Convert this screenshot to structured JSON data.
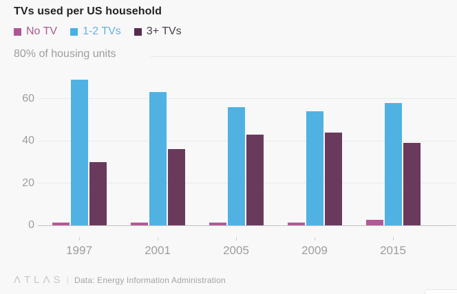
{
  "header": {
    "title": "TVs used per US household"
  },
  "legend": [
    {
      "label": "No TV",
      "swatch_color": "#b0549a",
      "text_color": "#a85a90"
    },
    {
      "label": "1-2 TVs",
      "swatch_color": "#45b1e6",
      "text_color": "#62b2de"
    },
    {
      "label": "3+ TVs",
      "swatch_color": "#572c52",
      "text_color": "#4c3a4e"
    }
  ],
  "axis_note": "80% of housing units",
  "chart_data": {
    "type": "bar",
    "title": "TVs used per US household",
    "categories": [
      "1997",
      "2001",
      "2005",
      "2009",
      "2015"
    ],
    "series": [
      {
        "name": "No TV",
        "color": "#b25a95",
        "values": [
          1.3,
          1.2,
          1.3,
          1.3,
          2.6
        ]
      },
      {
        "name": "1-2 TVs",
        "color": "#4fb2e2",
        "values": [
          69,
          63,
          56,
          54,
          58
        ]
      },
      {
        "name": "3+ TVs",
        "color": "#6a3a5d",
        "values": [
          30,
          36,
          43,
          44,
          39
        ]
      }
    ],
    "xlabel": "",
    "ylabel": "80% of housing units",
    "ylim": [
      0,
      80
    ],
    "yticks": [
      0,
      20,
      40,
      60
    ],
    "grid": true,
    "legend_position": "top"
  },
  "footer": {
    "logo": "ΛTLΛS",
    "source": "Data: Energy Information Administration"
  }
}
